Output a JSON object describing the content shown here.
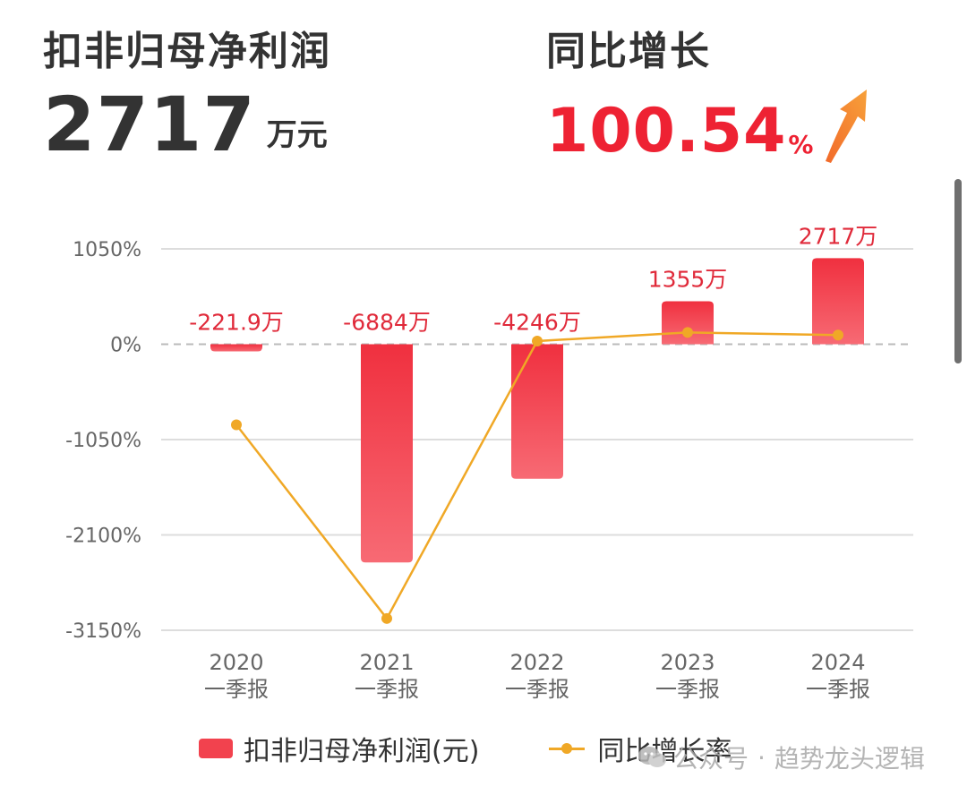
{
  "kpi": {
    "profit_title": "扣非归母净利润",
    "profit_value": "2717",
    "profit_unit": "万元",
    "growth_title": "同比增长",
    "growth_value": "100.54",
    "growth_pct": "%",
    "growth_icon": "up-arrow-icon"
  },
  "chart_data": {
    "type": "bar",
    "categories": [
      [
        "2020",
        "一季报"
      ],
      [
        "2021",
        "一季报"
      ],
      [
        "2022",
        "一季报"
      ],
      [
        "2023",
        "一季报"
      ],
      [
        "2024",
        "一季报"
      ]
    ],
    "y_ticks": [
      "1050%",
      "0%",
      "-1050%",
      "-2100%",
      "-3150%"
    ],
    "y_tick_values": [
      1050,
      0,
      -1050,
      -2100,
      -3150
    ],
    "ylim": [
      -3150,
      1050
    ],
    "grid": true,
    "legend_position": "bottom",
    "series": [
      {
        "name": "扣非归母净利润(元)",
        "type": "bar",
        "color": "#f2424e",
        "values_wan": [
          -221.9,
          -6884,
          -4246,
          1355,
          2717
        ],
        "data_labels": [
          "-221.9万",
          "-6884万",
          "-4246万",
          "1355万",
          "2717万"
        ]
      },
      {
        "name": "同比增长率",
        "type": "line",
        "color": "#f0a826",
        "values_pct": [
          -887,
          -3020,
          35,
          130,
          100.54
        ]
      }
    ]
  },
  "watermark": {
    "prefix": "公众号",
    "sep": "·",
    "account": "趋势龙头逻辑",
    "icon": "wechat-icon"
  },
  "colors": {
    "accent_red": "#ee2233",
    "bar": "#f2424e",
    "line": "#f0a826",
    "grid": "#dddddd"
  }
}
